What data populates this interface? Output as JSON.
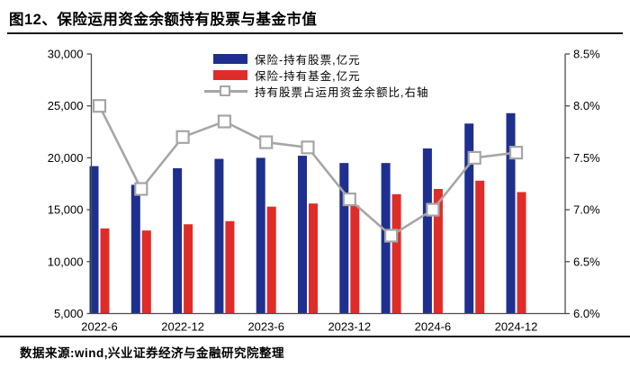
{
  "header": {
    "title": "图12、保险运用资金余额持有股票与基金市值"
  },
  "chart_data": {
    "type": "combo-bar-line",
    "categories": [
      "2022-6",
      "2022-9",
      "2022-12",
      "2023-3",
      "2023-6",
      "2023-9",
      "2023-12",
      "2024-3",
      "2024-6",
      "2024-9",
      "2024-12"
    ],
    "x_tick_labels": [
      "2022-6",
      "2022-12",
      "2023-6",
      "2023-12",
      "2024-6",
      "2024-12"
    ],
    "series": [
      {
        "name": "保险-持有股票,亿元",
        "type": "bar",
        "axis": "left",
        "color": "#1f2f8f",
        "values": [
          19200,
          17400,
          19000,
          19900,
          20000,
          20200,
          19500,
          19500,
          20900,
          23300,
          24300
        ]
      },
      {
        "name": "保险-持有基金,亿元",
        "type": "bar",
        "axis": "left",
        "color": "#e02c28",
        "values": [
          13200,
          13000,
          13600,
          13900,
          15300,
          15600,
          15400,
          16500,
          17000,
          17800,
          16700
        ]
      },
      {
        "name": "持有股票占运用资金余额比,右轴",
        "type": "line",
        "axis": "right",
        "color": "#a6a6a6",
        "marker": "open-square",
        "values": [
          8.0,
          7.2,
          7.7,
          7.85,
          7.65,
          7.6,
          7.1,
          6.75,
          7.0,
          7.5,
          7.55
        ]
      }
    ],
    "left_axis": {
      "min": 5000,
      "max": 30000,
      "step": 5000,
      "tick_labels": [
        "5,000",
        "10,000",
        "15,000",
        "20,000",
        "25,000",
        "30,000"
      ]
    },
    "right_axis": {
      "min": 6.0,
      "max": 8.5,
      "step": 0.5,
      "tick_labels": [
        "6.0%",
        "6.5%",
        "7.0%",
        "7.5%",
        "8.0%",
        "8.5%"
      ]
    },
    "grid": false,
    "legend_position": "top-center"
  },
  "footer": {
    "source": "数据来源:wind,兴业证券经济与金融研究院整理"
  }
}
